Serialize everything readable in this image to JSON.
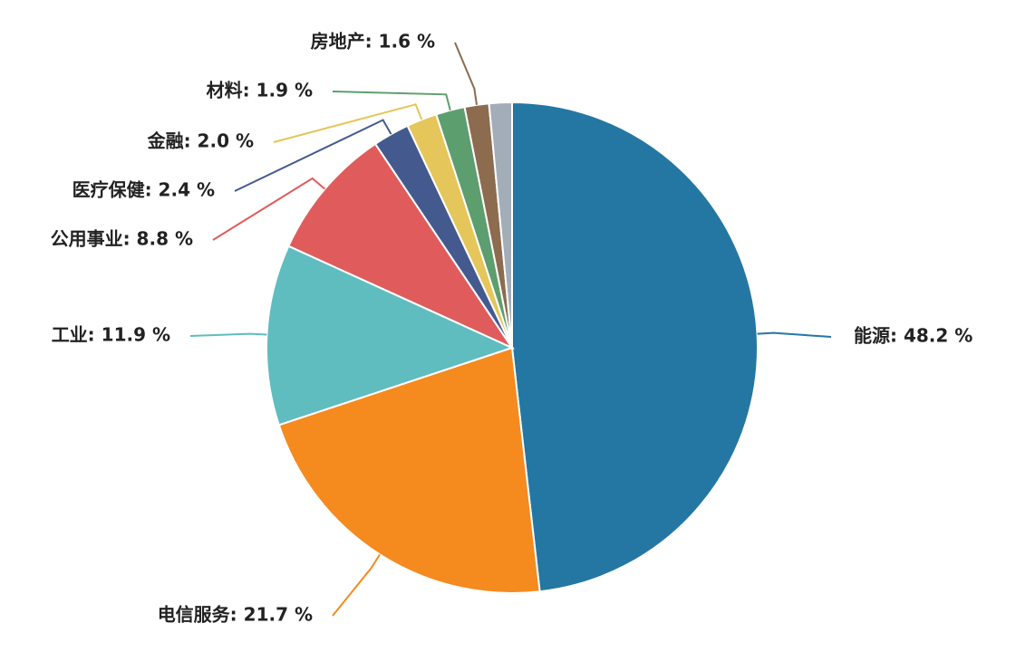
{
  "chart_data": {
    "type": "pie",
    "values": [
      48.2,
      21.7,
      11.9,
      8.8,
      2.4,
      2.0,
      1.9,
      1.6,
      1.5
    ],
    "value_labels": [
      "能源: 48.2 %",
      "电信服务: 21.7 %",
      "工业: 11.9 %",
      "公用事业: 8.8 %",
      "医疗保健: 2.4 %",
      "金融: 2.0 %",
      "材料: 1.9 %",
      "房地产: 1.6 %",
      null
    ],
    "colors": [
      "#2477a3",
      "#f58a1f",
      "#5fbdbf",
      "#e05c5c",
      "#445a8f",
      "#e5c65a",
      "#5d9e6e",
      "#8c6b4f",
      "#a3adb8"
    ]
  }
}
